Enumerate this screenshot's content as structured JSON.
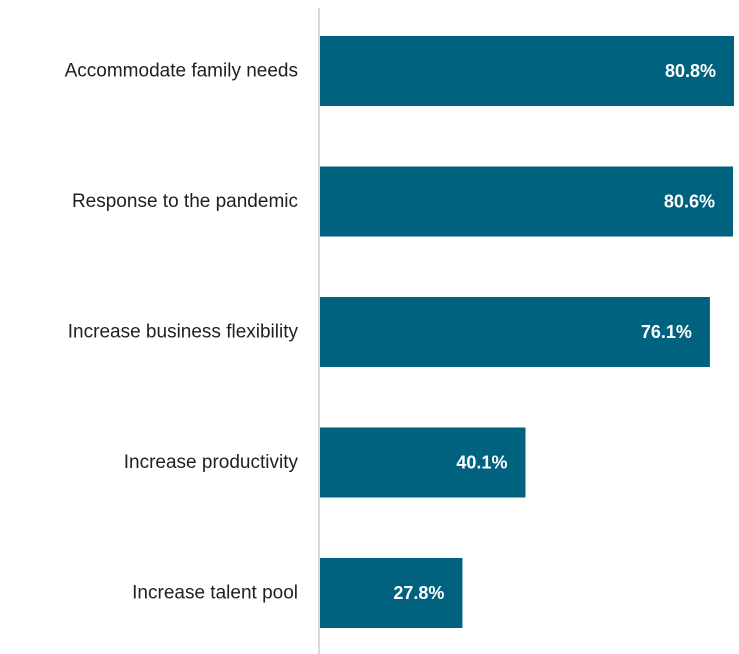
{
  "chart_data": {
    "type": "bar",
    "orientation": "horizontal",
    "title": "",
    "xlabel": "",
    "ylabel": "",
    "categories": [
      "Accommodate family needs",
      "Response to the pandemic",
      "Increase business flexibility",
      "Increase productivity",
      "Increase talent pool"
    ],
    "values": [
      80.8,
      80.6,
      76.1,
      40.1,
      27.8
    ],
    "value_labels": [
      "80.8%",
      "80.6%",
      "76.1%",
      "40.1%",
      "27.8%"
    ],
    "xlim": [
      0,
      80.8
    ],
    "grid": false,
    "legend": "none",
    "colors": {
      "bar": "#00627e",
      "axis": "#d9d9d9",
      "label": "#1f1f1f",
      "value_label": "#ffffff"
    }
  }
}
